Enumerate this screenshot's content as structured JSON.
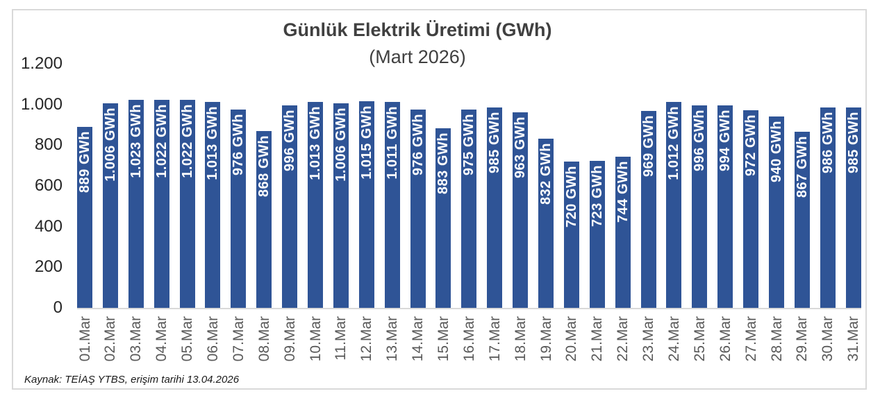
{
  "colors": {
    "bar": "#2F5496",
    "bar_value_label": "#FFFFFF",
    "axis_line": "#D9D9D9",
    "frame_border": "#D9D9D9",
    "title_text": "#404040",
    "y_tick_text": "#262626",
    "x_tick_text": "#595959"
  },
  "footer": "Kaynak: TEİAŞ YTBS, erişim tarihi 13.04.2026",
  "chart_data": {
    "type": "bar",
    "title": "Günlük Elektrik Üretimi (GWh)",
    "subtitle": "(Mart 2026)",
    "xlabel": "",
    "ylabel": "",
    "ylim": [
      0,
      1200
    ],
    "yticks": [
      "1.200",
      "1.000",
      "800",
      "600",
      "400",
      "200",
      "0"
    ],
    "grid": false,
    "legend": false,
    "categories": [
      "01.Mar",
      "02.Mar",
      "03.Mar",
      "04.Mar",
      "05.Mar",
      "06.Mar",
      "07.Mar",
      "08.Mar",
      "09.Mar",
      "10.Mar",
      "11.Mar",
      "12.Mar",
      "13.Mar",
      "14.Mar",
      "15.Mar",
      "16.Mar",
      "17.Mar",
      "18.Mar",
      "19.Mar",
      "20.Mar",
      "21.Mar",
      "22.Mar",
      "23.Mar",
      "24.Mar",
      "25.Mar",
      "26.Mar",
      "27.Mar",
      "28.Mar",
      "29.Mar",
      "30.Mar",
      "31.Mar"
    ],
    "values": [
      889,
      1006,
      1023,
      1022,
      1022,
      1013,
      976,
      868,
      996,
      1013,
      1006,
      1015,
      1011,
      976,
      883,
      975,
      985,
      963,
      832,
      720,
      723,
      744,
      969,
      1012,
      996,
      994,
      972,
      940,
      867,
      986,
      985
    ],
    "value_labels": [
      "889 GWh",
      "1.006 GWh",
      "1.023 GWh",
      "1.022 GWh",
      "1.022 GWh",
      "1.013 GWh",
      "976 GWh",
      "868 GWh",
      "996 GWh",
      "1.013 GWh",
      "1.006 GWh",
      "1.015 GWh",
      "1.011 GWh",
      "976 GWh",
      "883 GWh",
      "975 GWh",
      "985 GWh",
      "963 GWh",
      "832 GWh",
      "720 GWh",
      "723 GWh",
      "744 GWh",
      "969 GWh",
      "1.012 GWh",
      "996 GWh",
      "994 GWh",
      "972 GWh",
      "940 GWh",
      "867 GWh",
      "986 GWh",
      "985 GWh"
    ],
    "source_note": "Kaynak: TEİAŞ YTBS, erişim tarihi 13.04.2026"
  }
}
